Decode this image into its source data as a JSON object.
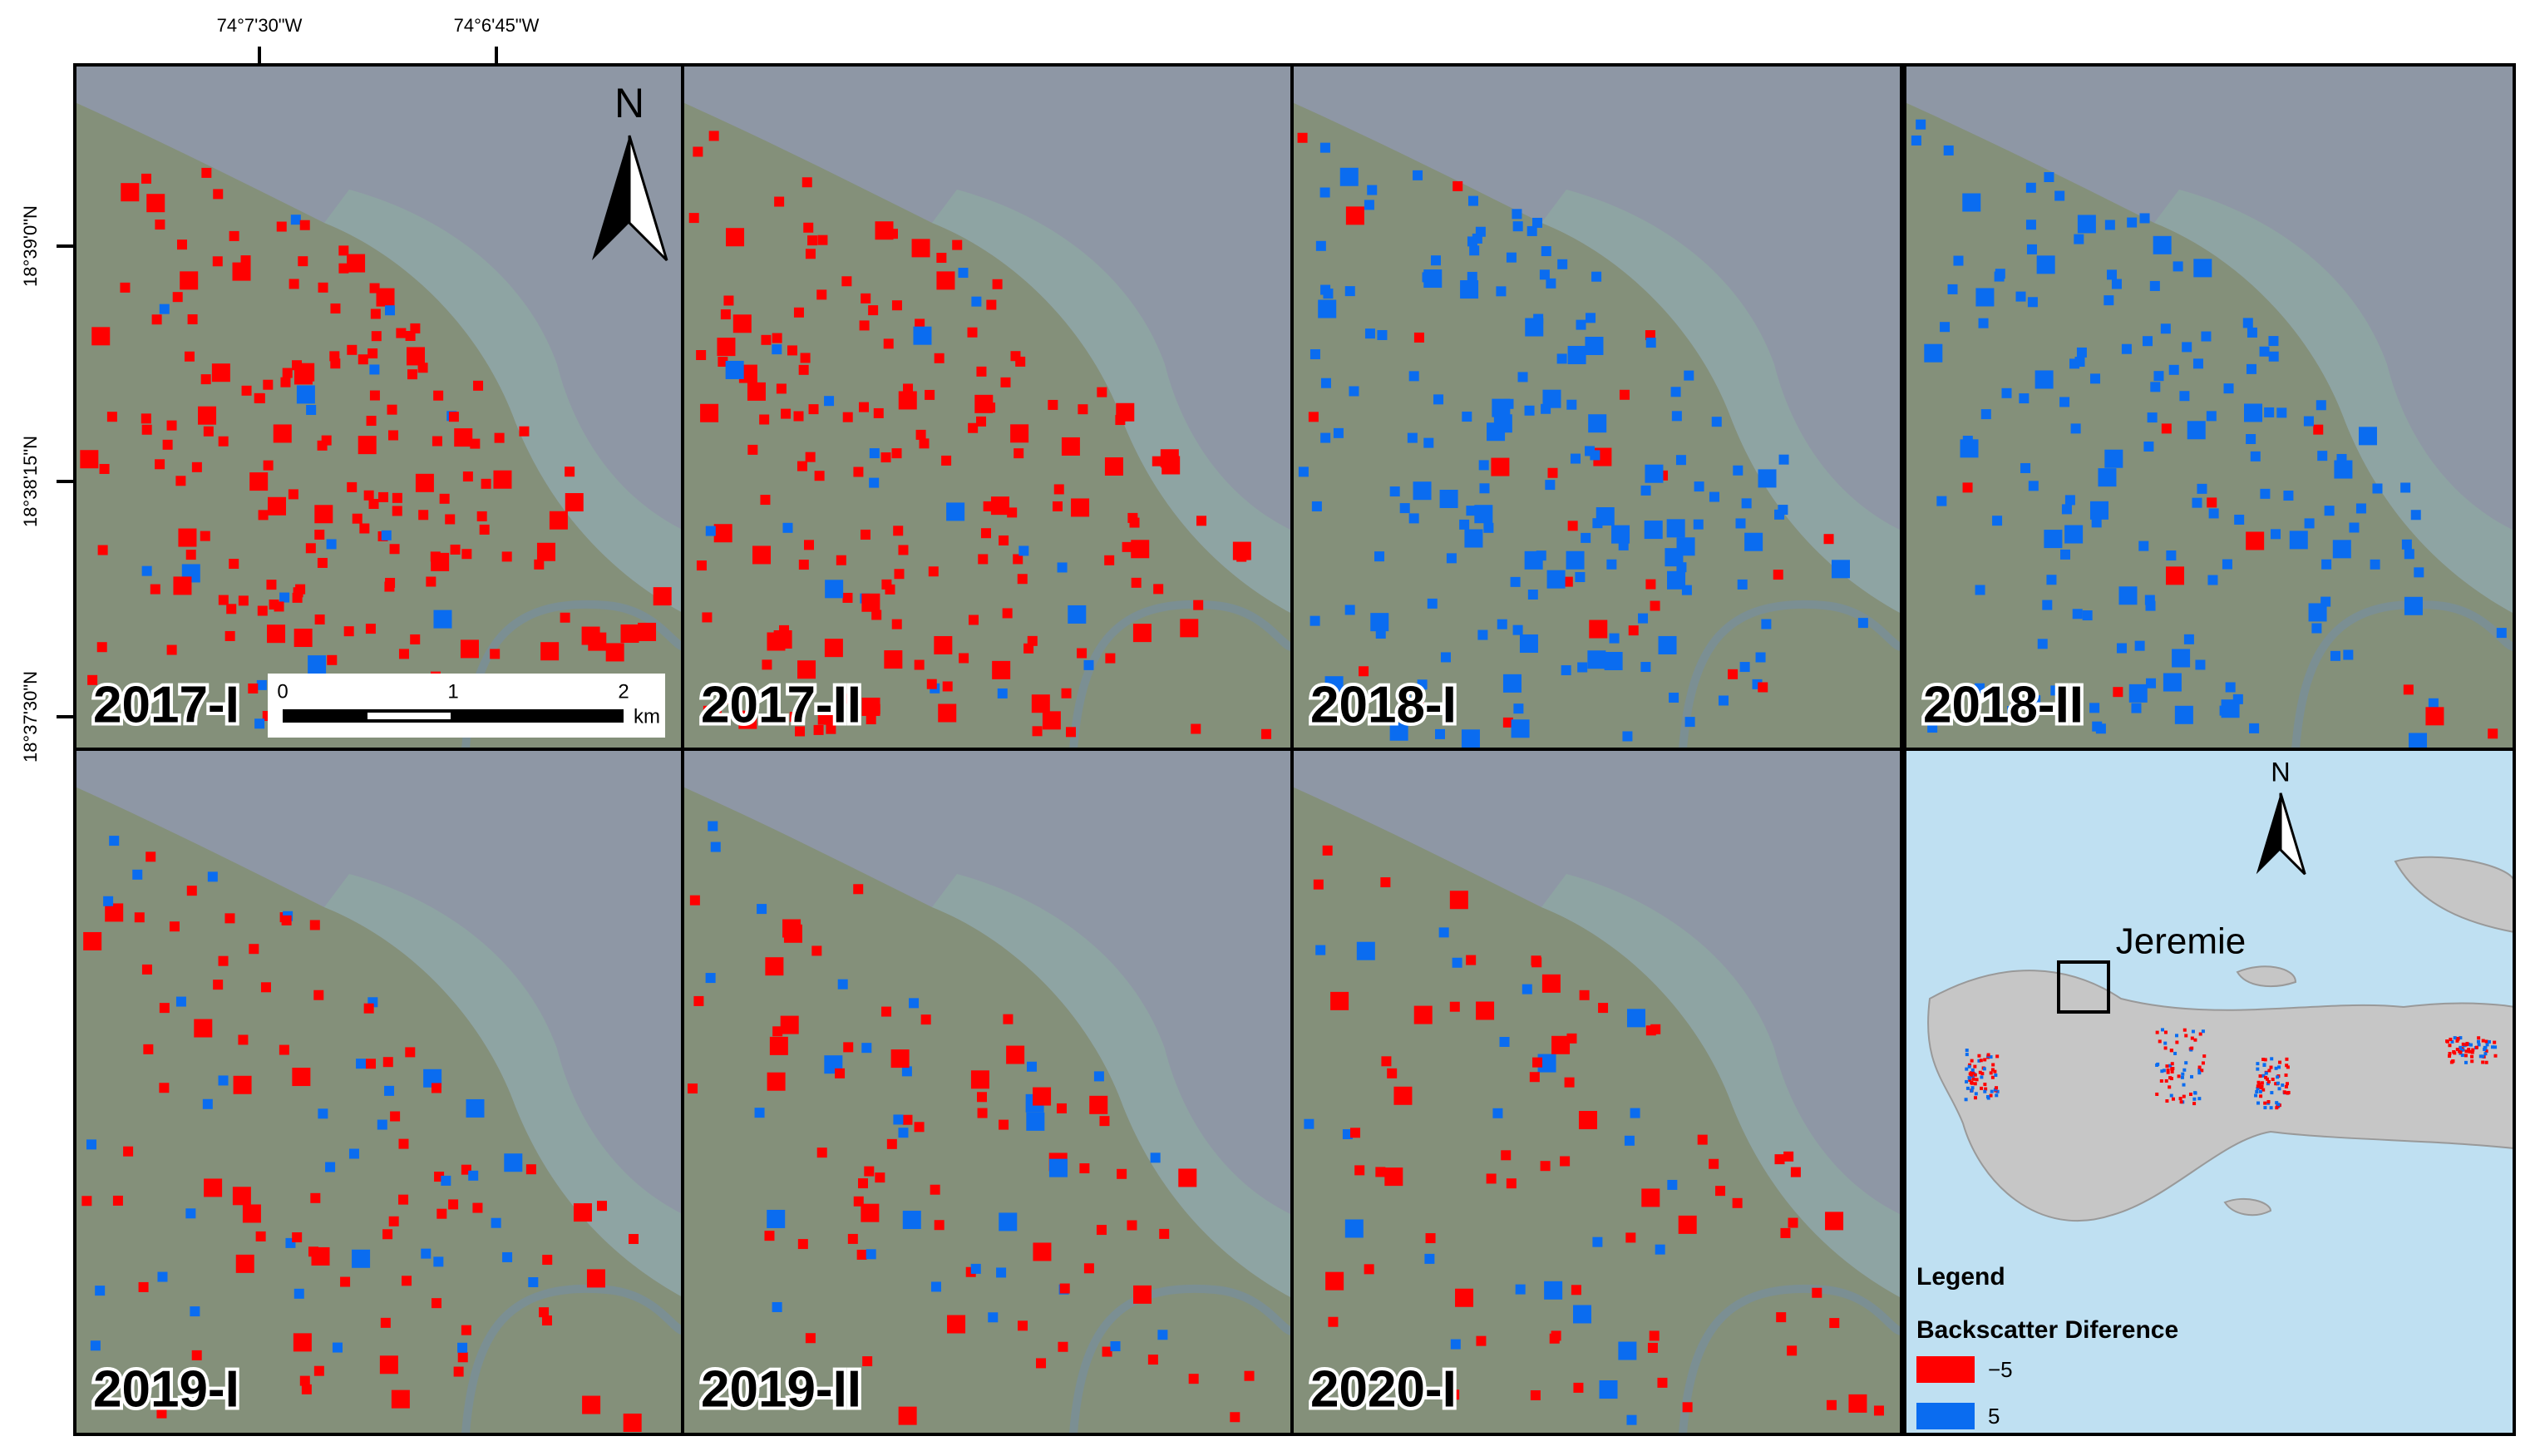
{
  "coordinates": {
    "longitude": [
      "74°7'30\"W",
      "74°6'45\"W"
    ],
    "latitude": [
      "18°39'0\"N",
      "18°38'15\"N",
      "18°37'30\"N"
    ]
  },
  "panels": [
    {
      "label": "2017-I"
    },
    {
      "label": "2017-II"
    },
    {
      "label": "2018-I"
    },
    {
      "label": "2018-II"
    },
    {
      "label": "2019-I"
    },
    {
      "label": "2019-II"
    },
    {
      "label": "2020-I"
    }
  ],
  "scale_bar": {
    "labels": [
      "0",
      "1",
      "2"
    ],
    "unit": "km"
  },
  "north_label": "N",
  "inset": {
    "place": "Jeremie",
    "north_label": "N"
  },
  "legend": {
    "title": "Legend",
    "subtitle": "Backscatter Diference",
    "items": [
      {
        "label": "−5",
        "color": "#ff0000"
      },
      {
        "label": "5",
        "color": "#0a6cf0"
      }
    ]
  }
}
